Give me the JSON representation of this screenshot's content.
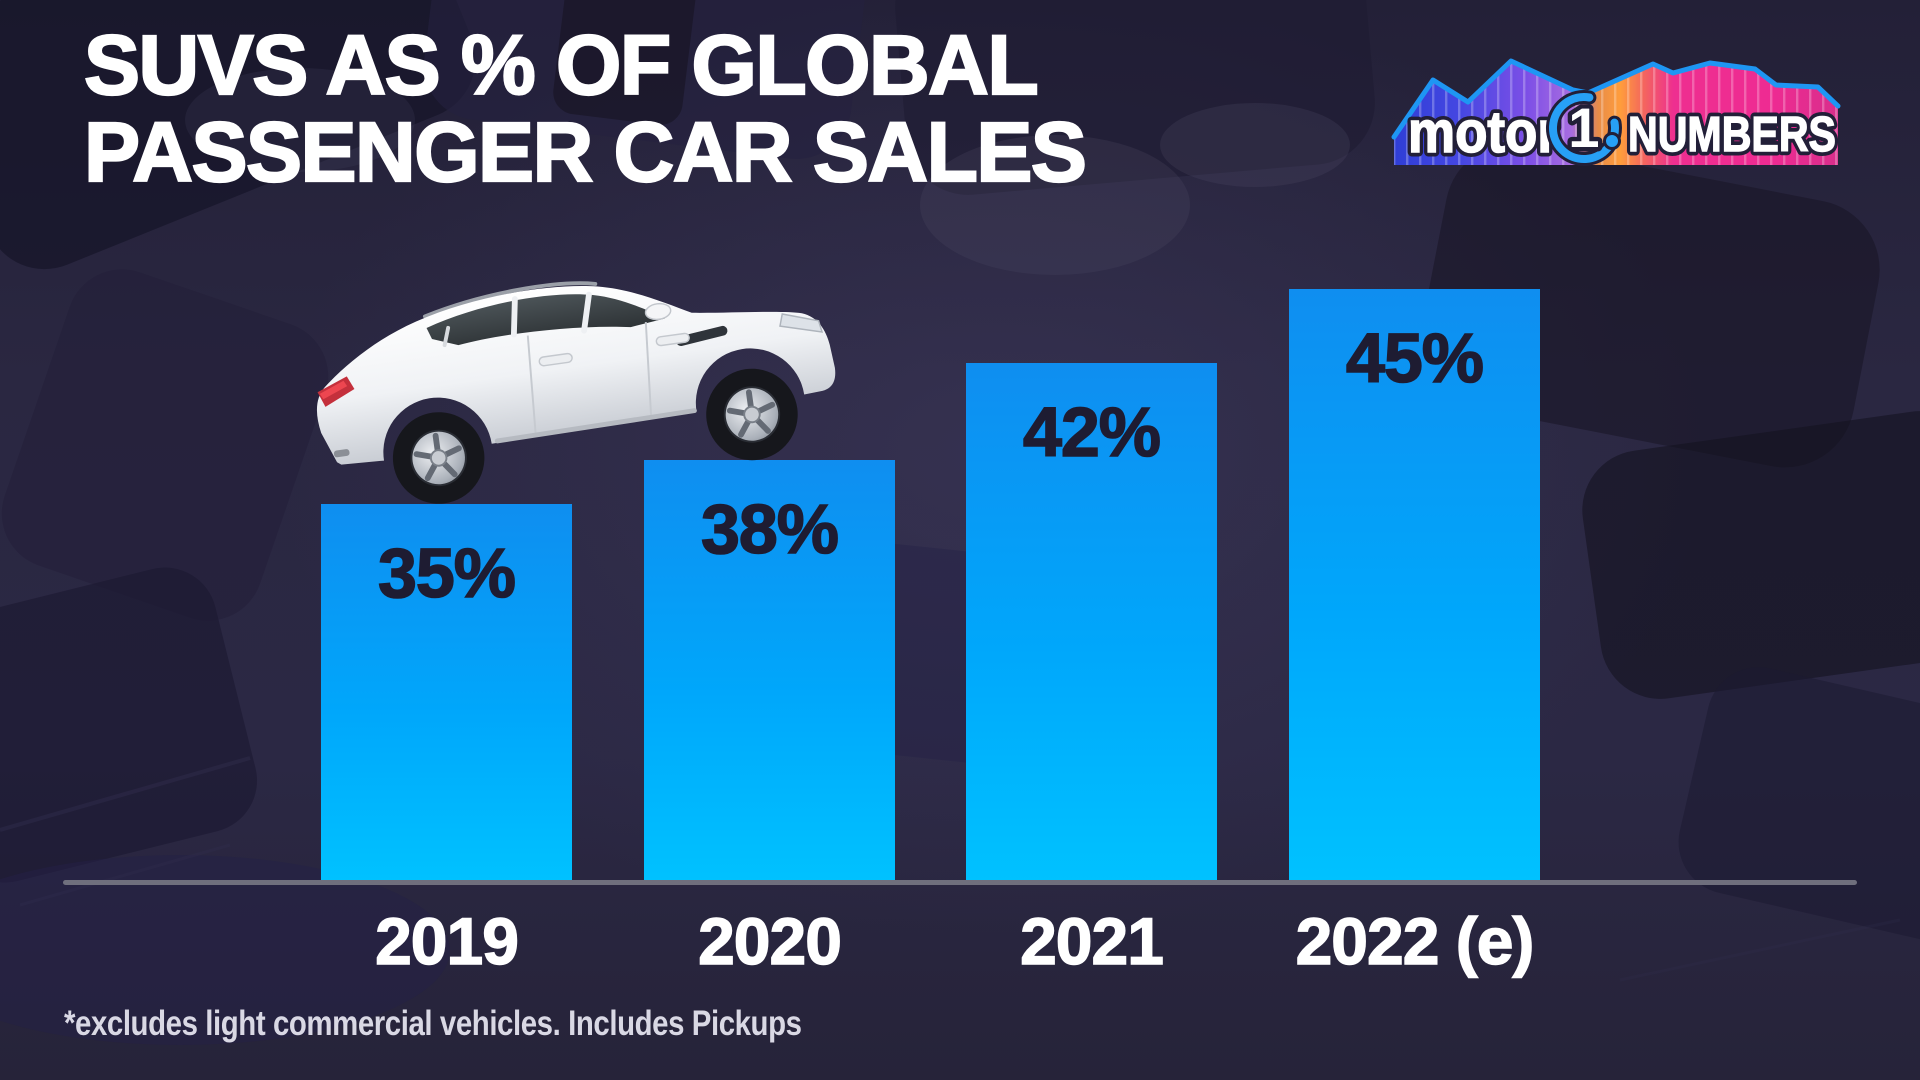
{
  "title": {
    "line1": "SUVS AS % OF GLOBAL",
    "line2": "PASSENGER CAR SALES"
  },
  "logo": {
    "brand": "motor",
    "one": "1",
    "suffix": "NUMBERS"
  },
  "chart_data": {
    "type": "bar",
    "title": "SUVs as % of global passenger car sales",
    "categories": [
      "2019",
      "2020",
      "2021",
      "2022 (e)"
    ],
    "values": [
      35,
      38,
      42,
      45
    ],
    "value_labels": [
      "35%",
      "38%",
      "42%",
      "45%"
    ],
    "unit": "%",
    "xlabel": "",
    "ylabel": "",
    "ylim": [
      0,
      50
    ],
    "grid": false,
    "legend": "none",
    "bar_color_top": "#0f8ef0",
    "bar_color_bottom": "#00c2ff",
    "value_label_color": "#1e1c32",
    "category_label_color": "#ffffff",
    "axis_line_color": "#6f6f7d"
  },
  "footnote": {
    "text": "*excludes light commercial vehicles. Includes Pickups"
  },
  "colors": {
    "background": "#2a2741",
    "title_text": "#ffffff",
    "logo_ring_blue": "#27a0f6",
    "logo_gradient": [
      "#2f3ed6",
      "#7d4fe6",
      "#ff9d3c",
      "#ee2f90"
    ]
  }
}
